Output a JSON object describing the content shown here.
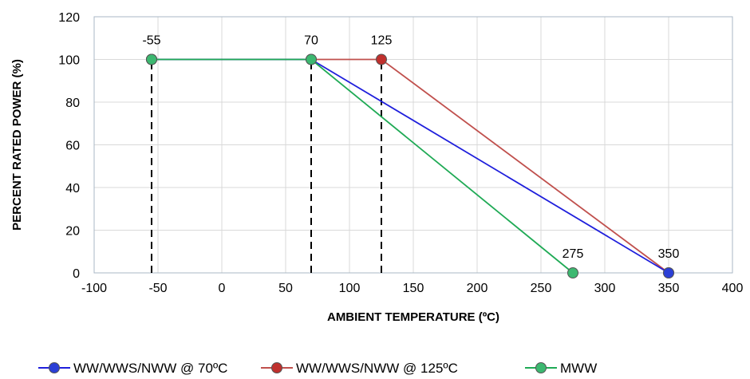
{
  "chart_data": {
    "type": "line",
    "title": "",
    "xlabel": "AMBIENT TEMPERATURE (ºC)",
    "ylabel": "PERCENT RATED POWER (%)",
    "xlim": [
      -100,
      400
    ],
    "ylim": [
      0,
      120
    ],
    "x_ticks": [
      -100,
      -50,
      0,
      50,
      100,
      150,
      200,
      250,
      300,
      350,
      400
    ],
    "y_ticks": [
      0,
      20,
      40,
      60,
      80,
      100,
      120
    ],
    "grid": true,
    "legend_position": "bottom",
    "series": [
      {
        "name": "WW/WWS/NWW @ 70ºC",
        "color": "#1f1fdc",
        "marker_color": "#2b3fd6",
        "points": [
          {
            "x": -55,
            "y": 100
          },
          {
            "x": 70,
            "y": 100
          },
          {
            "x": 350,
            "y": 0
          }
        ]
      },
      {
        "name": "WW/WWS/NWW @ 125ºC",
        "color": "#c0504d",
        "marker_color": "#c0302d",
        "points": [
          {
            "x": -55,
            "y": 100
          },
          {
            "x": 125,
            "y": 100
          },
          {
            "x": 350,
            "y": 0
          }
        ]
      },
      {
        "name": "MWW",
        "color": "#1faa55",
        "marker_color": "#3cb870",
        "points": [
          {
            "x": -55,
            "y": 100
          },
          {
            "x": 70,
            "y": 100
          },
          {
            "x": 275,
            "y": 0
          }
        ]
      }
    ],
    "reference_lines": [
      {
        "x": -55,
        "y_from": 0,
        "y_to": 100,
        "style": "dashed"
      },
      {
        "x": 70,
        "y_from": 0,
        "y_to": 100,
        "style": "dashed"
      },
      {
        "x": 125,
        "y_from": 0,
        "y_to": 100,
        "style": "dashed"
      }
    ],
    "annotations": [
      {
        "text": "-55",
        "x": -55,
        "y": 100
      },
      {
        "text": "70",
        "x": 70,
        "y": 100
      },
      {
        "text": "125",
        "x": 125,
        "y": 100
      },
      {
        "text": "275",
        "x": 275,
        "y": 0
      },
      {
        "text": "350",
        "x": 350,
        "y": 0
      }
    ]
  }
}
